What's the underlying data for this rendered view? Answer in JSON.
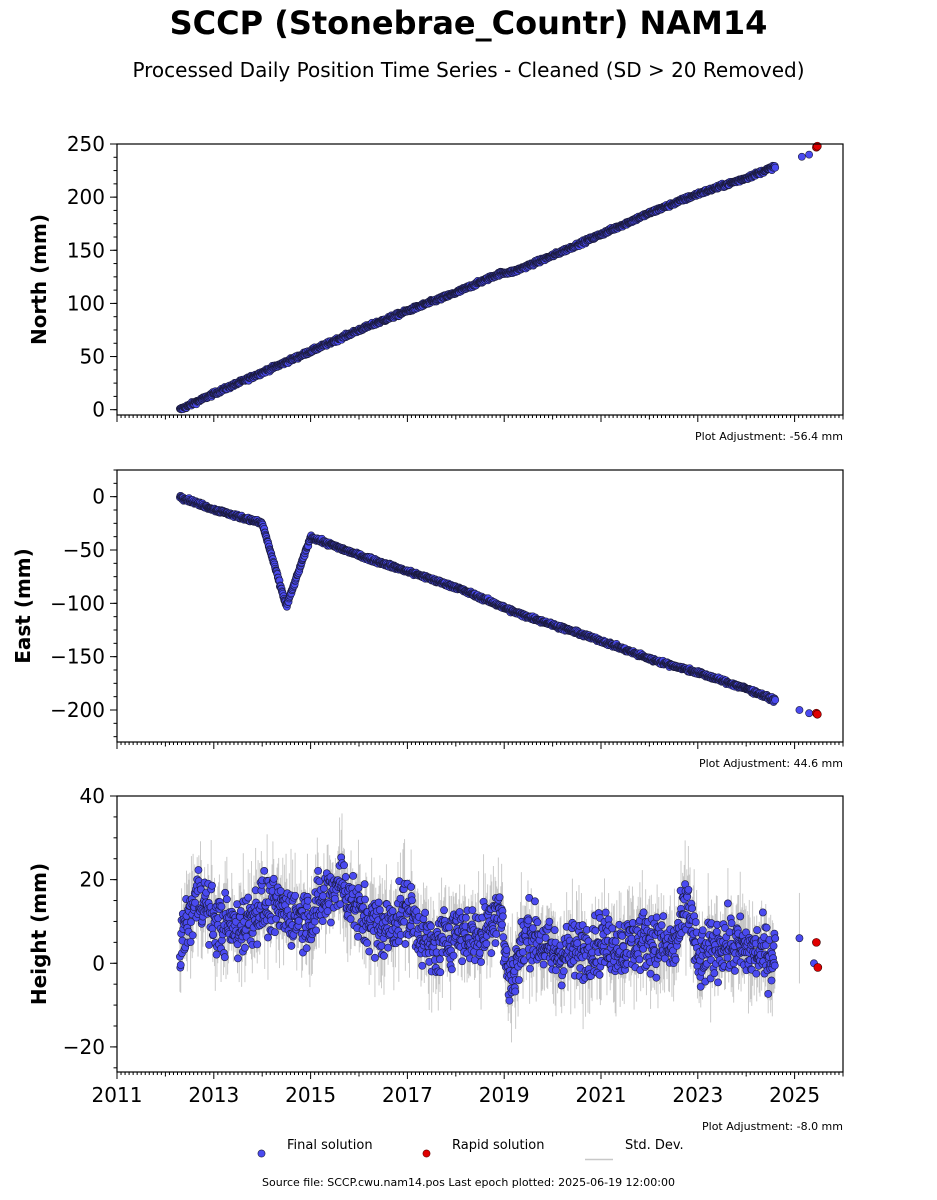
{
  "title": "SCCP (Stonebrae_Countr) NAM14",
  "subtitle": "Processed Daily Position Time Series - Cleaned (SD > 20 Removed)",
  "footer": "Source file: SCCP.cwu.nam14.pos  Last epoch plotted: 2025-06-19 12:00:00",
  "colors": {
    "final": "#4a4af0",
    "rapid": "#e00000",
    "std": "#a0a0a0",
    "edge": "#1a1a3a"
  },
  "legend": {
    "final": "Final solution",
    "rapid": "Rapid solution",
    "std": "Std. Dev."
  },
  "chart_data": [
    {
      "type": "scatter",
      "ylabel": "North (mm)",
      "xlim": [
        2011,
        2026
      ],
      "ylim": [
        -5,
        250
      ],
      "yticks": [
        0,
        50,
        100,
        150,
        200,
        250
      ],
      "adjustment": "Plot Adjustment: -56.4 mm",
      "series": [
        {
          "name": "Final solution",
          "x": [
            2012.3,
            2013.0,
            2014.0,
            2015.0,
            2016.0,
            2017.0,
            2018.0,
            2018.9,
            2019.2,
            2020.0,
            2021.0,
            2022.0,
            2023.0,
            2024.0,
            2024.55,
            2025.15,
            2025.3
          ],
          "y": [
            0,
            15,
            35,
            55,
            75,
            93,
            110,
            128,
            130,
            145,
            165,
            185,
            203,
            218,
            228,
            238,
            240
          ]
        },
        {
          "name": "Rapid solution",
          "x": [
            2025.45,
            2025.47
          ],
          "y": [
            247,
            248
          ]
        }
      ]
    },
    {
      "type": "scatter",
      "ylabel": "East (mm)",
      "xlim": [
        2011,
        2026
      ],
      "ylim": [
        -230,
        25
      ],
      "yticks": [
        0,
        -50,
        -100,
        -150,
        -200
      ],
      "adjustment": "Plot Adjustment: 44.6 mm",
      "series": [
        {
          "name": "Final solution",
          "x": [
            2012.3,
            2013.0,
            2014.0,
            2014.5,
            2015.0,
            2016.0,
            2017.0,
            2018.0,
            2018.8,
            2019.2,
            2020.0,
            2021.0,
            2022.0,
            2023.0,
            2024.0,
            2024.55,
            2025.1,
            2025.3
          ],
          "y": [
            0,
            -12,
            -25,
            -103,
            -38,
            -55,
            -70,
            -85,
            -100,
            -108,
            -120,
            -135,
            -152,
            -165,
            -180,
            -190,
            -200,
            -203
          ]
        },
        {
          "name": "Rapid solution",
          "x": [
            2025.45,
            2025.47
          ],
          "y": [
            -203,
            -204
          ]
        }
      ]
    },
    {
      "type": "scatter",
      "ylabel": "Height (mm)",
      "xlim": [
        2011,
        2026
      ],
      "ylim": [
        -26,
        40
      ],
      "yticks": [
        -20,
        0,
        20,
        40
      ],
      "xticks": [
        2011,
        2013,
        2015,
        2017,
        2019,
        2021,
        2023,
        2025
      ],
      "adjustment": "Plot Adjustment: -8.0 mm",
      "series": [
        {
          "name": "Final solution",
          "x": [
            2012.3,
            2012.7,
            2013.0,
            2013.5,
            2014.0,
            2014.5,
            2015.0,
            2015.6,
            2016.0,
            2016.5,
            2017.0,
            2017.5,
            2018.0,
            2018.5,
            2018.9,
            2019.1,
            2019.5,
            2020.0,
            2020.5,
            2021.0,
            2021.5,
            2022.0,
            2022.5,
            2022.8,
            2023.0,
            2023.5,
            2024.0,
            2024.5,
            2025.1,
            2025.4
          ],
          "y": [
            5,
            17,
            10,
            8,
            14,
            12,
            11,
            20,
            12,
            8,
            13,
            3,
            8,
            6,
            14,
            -5,
            8,
            2,
            3,
            5,
            4,
            6,
            3,
            15,
            0,
            5,
            3,
            2,
            6,
            0
          ]
        },
        {
          "name": "Rapid solution",
          "x": [
            2025.45,
            2025.48
          ],
          "y": [
            5,
            -1
          ]
        }
      ]
    }
  ]
}
